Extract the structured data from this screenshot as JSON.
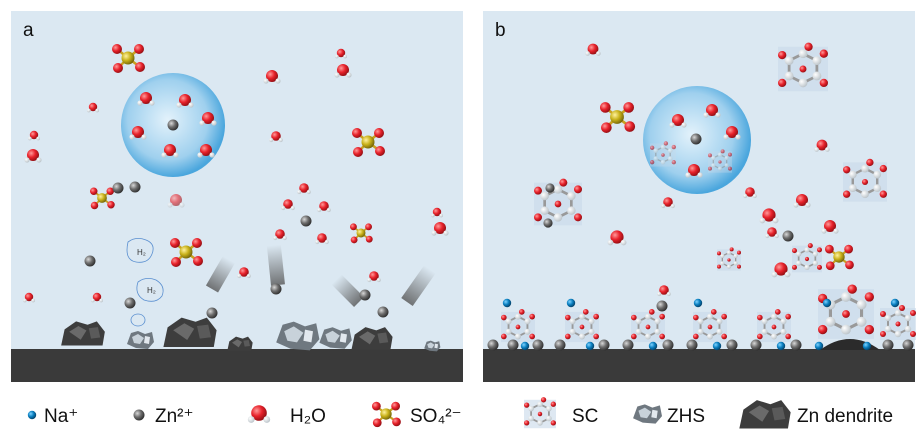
{
  "panels": [
    {
      "label": "a",
      "bubbles": [
        "H₂",
        "H₂"
      ]
    },
    {
      "label": "b"
    }
  ],
  "legend": [
    "Na⁺",
    "Zn²⁺",
    "H₂O",
    "SO₄²⁻",
    "SC",
    "ZHS",
    "Zn dendrite"
  ]
}
